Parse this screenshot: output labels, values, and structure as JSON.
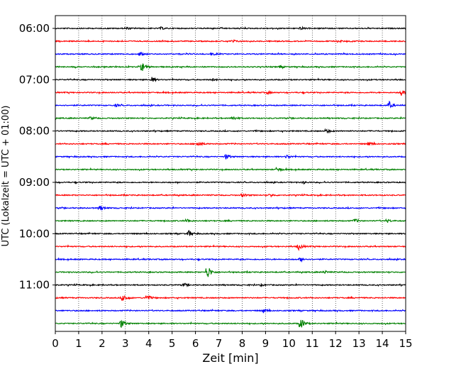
{
  "chart_data": {
    "type": "line",
    "title": "",
    "xlabel": "Zeit  [min]",
    "ylabel": "UTC (Lokalzeit = UTC + 01:00)",
    "xlim": [
      0,
      15
    ],
    "x_ticks": [
      "0",
      "1",
      "2",
      "3",
      "4",
      "5",
      "6",
      "7",
      "8",
      "9",
      "10",
      "11",
      "12",
      "13",
      "14",
      "15"
    ],
    "y_tick_labels": [
      "06:00",
      "07:00",
      "08:00",
      "09:00",
      "10:00",
      "11:00"
    ],
    "grid": "vertical dotted",
    "trace_interval_min": 15,
    "color_cycle": [
      "#000000",
      "#ff0000",
      "#0000ff",
      "#008000"
    ],
    "series": [
      {
        "start": "06:00",
        "events": [
          [
            3.0,
            0.2
          ],
          [
            4.5,
            0.2
          ],
          [
            10.5,
            0.25
          ]
        ]
      },
      {
        "start": "06:15",
        "events": [
          [
            7.6,
            0.2
          ],
          [
            12.1,
            0.2
          ]
        ]
      },
      {
        "start": "06:30",
        "events": [
          [
            3.6,
            0.35
          ],
          [
            6.7,
            0.2
          ]
        ]
      },
      {
        "start": "06:45",
        "events": [
          [
            3.7,
            0.8
          ],
          [
            9.6,
            0.2
          ]
        ]
      },
      {
        "start": "07:00",
        "events": [
          [
            4.1,
            0.5
          ],
          [
            6.7,
            0.2
          ]
        ]
      },
      {
        "start": "07:15",
        "events": [
          [
            9.1,
            0.2
          ],
          [
            14.8,
            0.5
          ]
        ]
      },
      {
        "start": "07:30",
        "events": [
          [
            2.6,
            0.2
          ],
          [
            14.3,
            0.55
          ]
        ]
      },
      {
        "start": "07:45",
        "events": [
          [
            1.5,
            0.25
          ],
          [
            7.6,
            0.35
          ]
        ]
      },
      {
        "start": "08:00",
        "events": [
          [
            11.6,
            0.35
          ]
        ]
      },
      {
        "start": "08:15",
        "events": [
          [
            6.1,
            0.5
          ],
          [
            13.4,
            0.35
          ]
        ]
      },
      {
        "start": "08:30",
        "events": [
          [
            7.3,
            0.45
          ],
          [
            9.9,
            0.35
          ]
        ]
      },
      {
        "start": "08:45",
        "events": [
          [
            9.5,
            0.45
          ]
        ]
      },
      {
        "start": "09:00",
        "events": [
          [
            10.6,
            0.2
          ]
        ]
      },
      {
        "start": "09:15",
        "events": [
          [
            8.0,
            0.3
          ],
          [
            9.2,
            0.25
          ]
        ]
      },
      {
        "start": "09:30",
        "events": [
          [
            1.9,
            0.5
          ]
        ]
      },
      {
        "start": "09:45",
        "events": [
          [
            5.6,
            0.3
          ],
          [
            12.8,
            0.35
          ],
          [
            14.2,
            0.3
          ]
        ]
      },
      {
        "start": "10:00",
        "events": [
          [
            5.7,
            0.6
          ]
        ]
      },
      {
        "start": "10:15",
        "events": [
          [
            10.4,
            0.55
          ]
        ]
      },
      {
        "start": "10:30",
        "events": [
          [
            10.5,
            0.35
          ]
        ]
      },
      {
        "start": "10:45",
        "events": [
          [
            6.5,
            1.3
          ],
          [
            11.5,
            0.25
          ]
        ]
      },
      {
        "start": "11:00",
        "events": [
          [
            5.5,
            0.2
          ],
          [
            8.8,
            0.2
          ]
        ]
      },
      {
        "start": "11:15",
        "events": [
          [
            2.9,
            0.7
          ],
          [
            3.9,
            0.6
          ]
        ]
      },
      {
        "start": "11:30",
        "events": [
          [
            8.9,
            0.35
          ]
        ]
      },
      {
        "start": "11:45",
        "events": [
          [
            2.8,
            0.8
          ],
          [
            10.5,
            0.95
          ]
        ]
      }
    ]
  }
}
